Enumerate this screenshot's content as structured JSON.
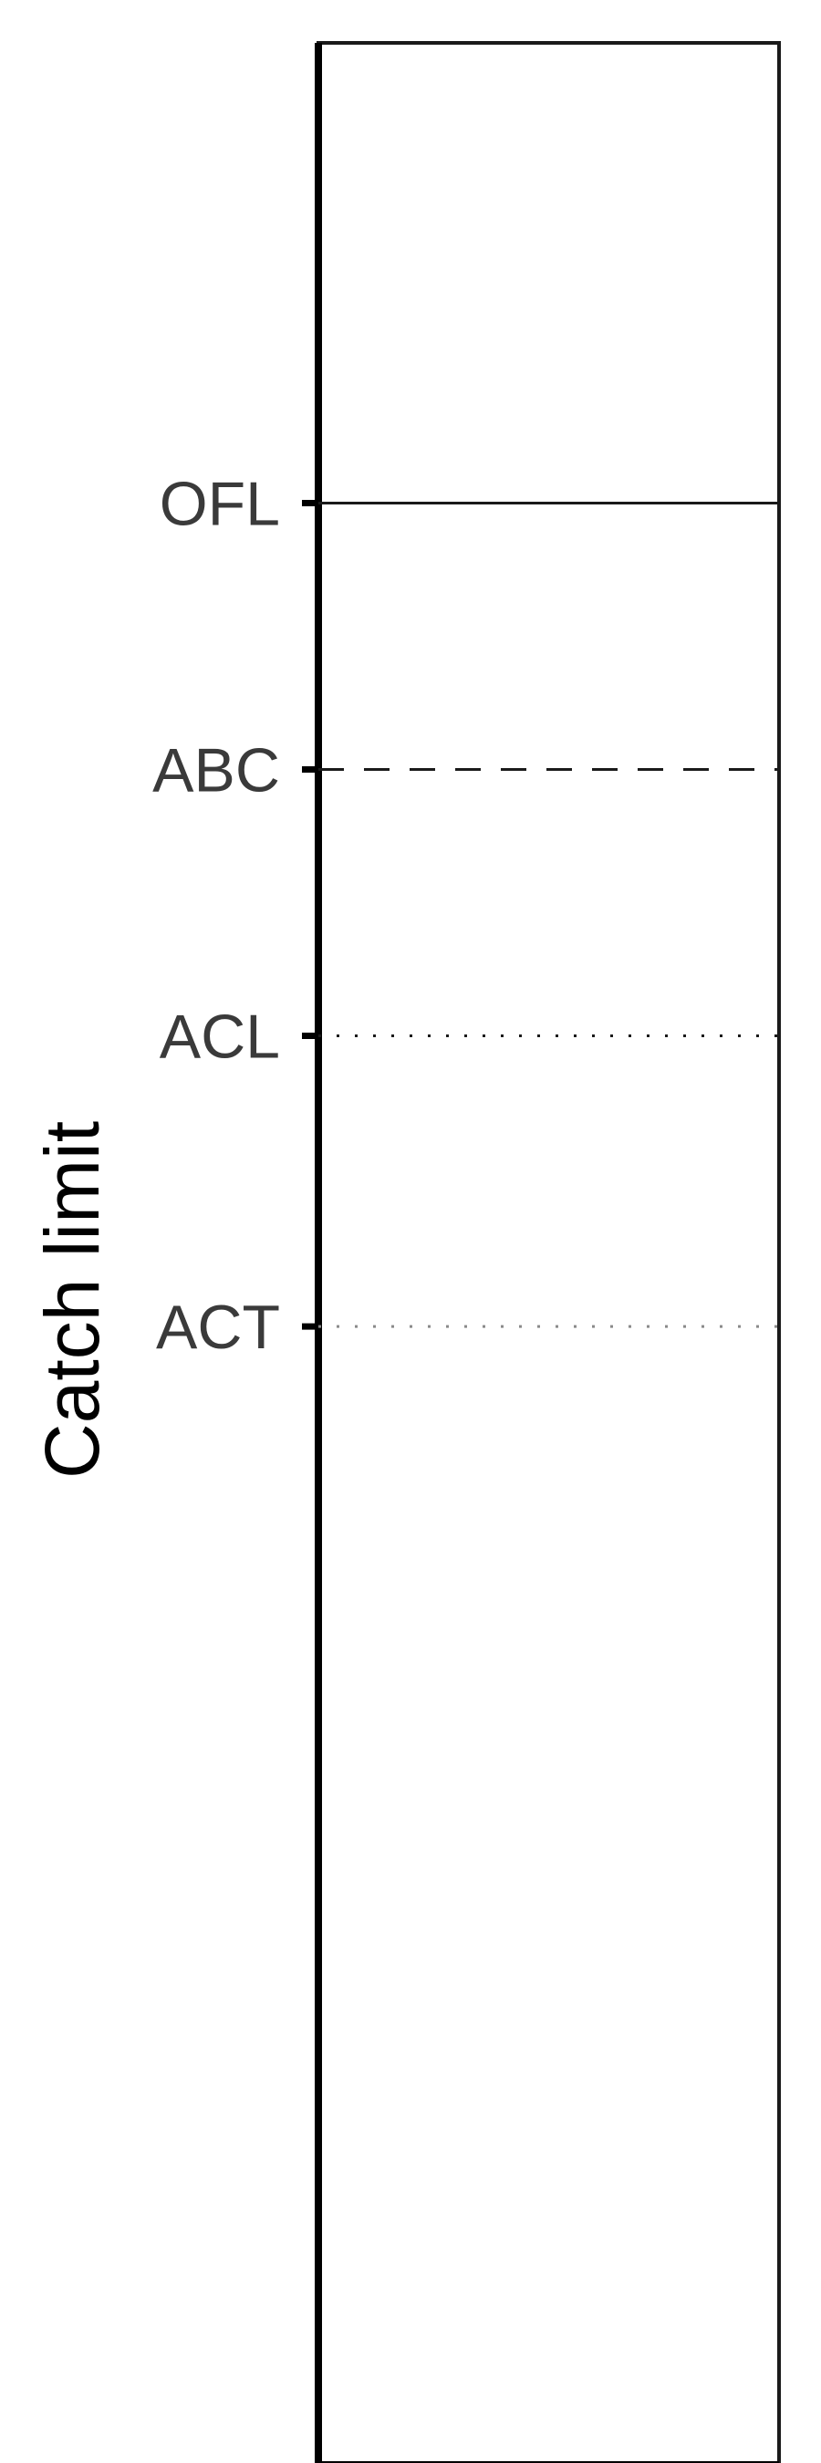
{
  "chart_data": {
    "type": "line",
    "title": "",
    "xlabel": "",
    "ylabel": "Catch limit",
    "ylim": [
      0,
      100
    ],
    "grid": false,
    "series": [
      {
        "name": "OFL",
        "value": 81,
        "linestyle": "solid",
        "color": "#1a1a1a"
      },
      {
        "name": "ABC",
        "value": 70,
        "linestyle": "dashed",
        "color": "#1a1a1a"
      },
      {
        "name": "ACL",
        "value": 59,
        "linestyle": "dotted",
        "color": "#1a1a1a"
      },
      {
        "name": "ACT",
        "value": 47,
        "linestyle": "dotted",
        "color": "#8a8a8a"
      }
    ]
  }
}
